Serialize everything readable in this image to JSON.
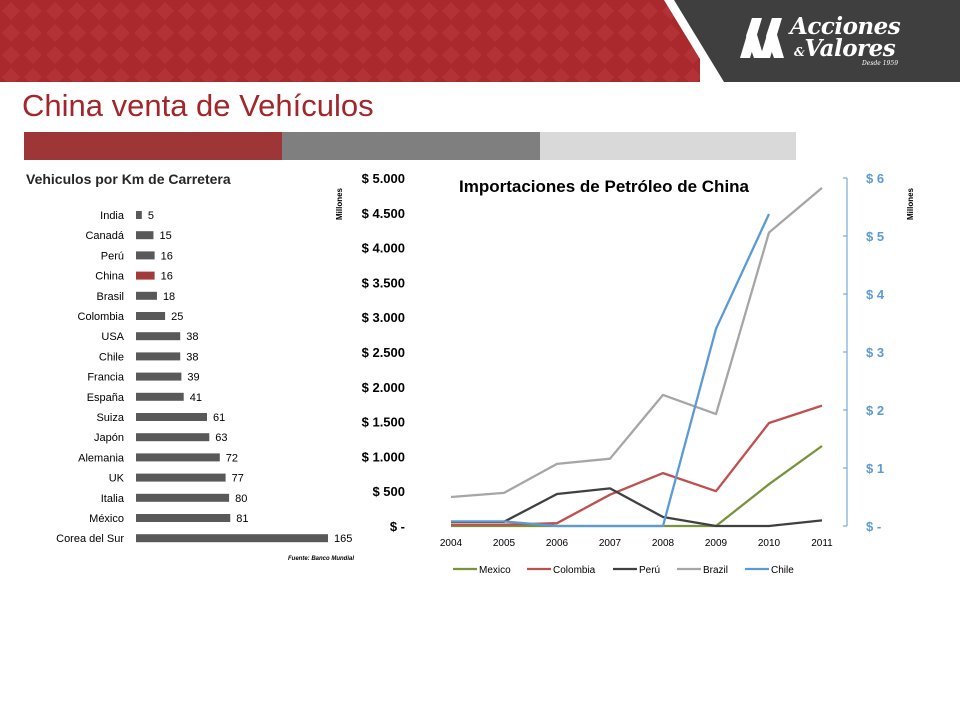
{
  "header": {
    "logo_line1": "Acciones",
    "logo_line2": "Valores",
    "logo_amp": "&",
    "logo_since": "Desde 1959",
    "title": "China venta de Vehículos"
  },
  "colors": {
    "brand_red": "#a3262a",
    "strip_red": "#9e3637",
    "strip_gray": "#7f7f7f",
    "strip_light": "#d9d9d9",
    "bar_gray": "#595959",
    "bar_highlight": "#a33a3a"
  },
  "chart_data": [
    {
      "type": "bar",
      "title": "Vehiculos por Km de Carretera",
      "orientation": "horizontal",
      "categories": [
        "India",
        "Canadá",
        "Perú",
        "China",
        "Brasil",
        "Colombia",
        "USA",
        "Chile",
        "Francia",
        "España",
        "Suiza",
        "Japón",
        "Alemania",
        "UK",
        "Italia",
        "México",
        "Corea del Sur"
      ],
      "values": [
        5,
        15,
        16,
        16,
        18,
        25,
        38,
        38,
        39,
        41,
        61,
        63,
        72,
        77,
        80,
        81,
        165
      ],
      "highlight": "China",
      "source": "Fuente: Banco Mundial",
      "grid": false
    },
    {
      "type": "line",
      "title": "Importaciones de Petróleo de China",
      "x": [
        "2004",
        "2005",
        "2006",
        "2007",
        "2008",
        "2009",
        "2010",
        "2011"
      ],
      "series": [
        {
          "name": "Mexico",
          "color": "#77933c",
          "axis": "left",
          "values": [
            0,
            0,
            0,
            0,
            0,
            0,
            600,
            1150
          ]
        },
        {
          "name": "Colombia",
          "color": "#c0504d",
          "axis": "left",
          "values": [
            20,
            20,
            40,
            450,
            760,
            500,
            1480,
            1730
          ]
        },
        {
          "name": "Perú",
          "color": "#404040",
          "axis": "left",
          "values": [
            60,
            60,
            460,
            540,
            130,
            0,
            0,
            80
          ]
        },
        {
          "name": "Brazil",
          "color": "#a6a6a6",
          "axis": "right",
          "values": [
            0.5,
            0.57,
            1.07,
            1.16,
            2.26,
            1.93,
            5.06,
            5.83
          ]
        },
        {
          "name": "Chile",
          "color": "#5b9bd5",
          "axis": "right",
          "values": [
            0.08,
            0.08,
            0,
            0,
            0,
            3.4,
            5.38,
            null
          ]
        }
      ],
      "y_left": {
        "label": "Millones",
        "ylim": [
          0,
          5000
        ],
        "ticks": [
          "$ 5.000",
          "$ 4.500",
          "$ 4.000",
          "$ 3.500",
          "$ 3.000",
          "$ 2.500",
          "$ 2.000",
          "$ 1.500",
          "$ 1.000",
          "$ 500",
          "$ -"
        ]
      },
      "y_right": {
        "label": "Millones",
        "ylim": [
          0,
          6
        ],
        "ticks": [
          "$ 6",
          "$ 5",
          "$ 4",
          "$ 3",
          "$ 2",
          "$ 1",
          "$ -"
        ]
      },
      "legend_position": "bottom",
      "grid": false
    }
  ]
}
